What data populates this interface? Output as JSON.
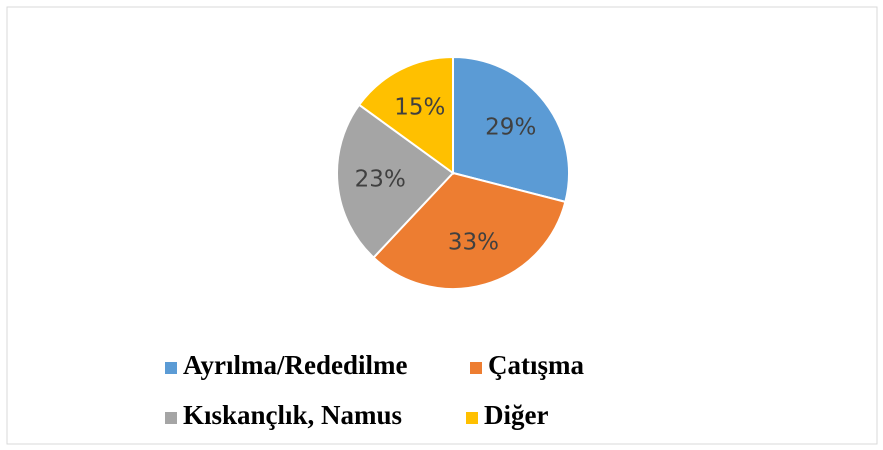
{
  "chart_data": {
    "type": "pie",
    "categories": [
      "Ayrılma/Rededilme",
      "Çatışma",
      "Kıskançlık, Namus",
      "Diğer"
    ],
    "values": [
      29,
      33,
      23,
      15
    ],
    "value_labels": [
      "29%",
      "33%",
      "23%",
      "15%"
    ],
    "colors": [
      "#5b9bd5",
      "#ed7d31",
      "#a5a5a5",
      "#ffc000"
    ],
    "legend": "bottom"
  }
}
